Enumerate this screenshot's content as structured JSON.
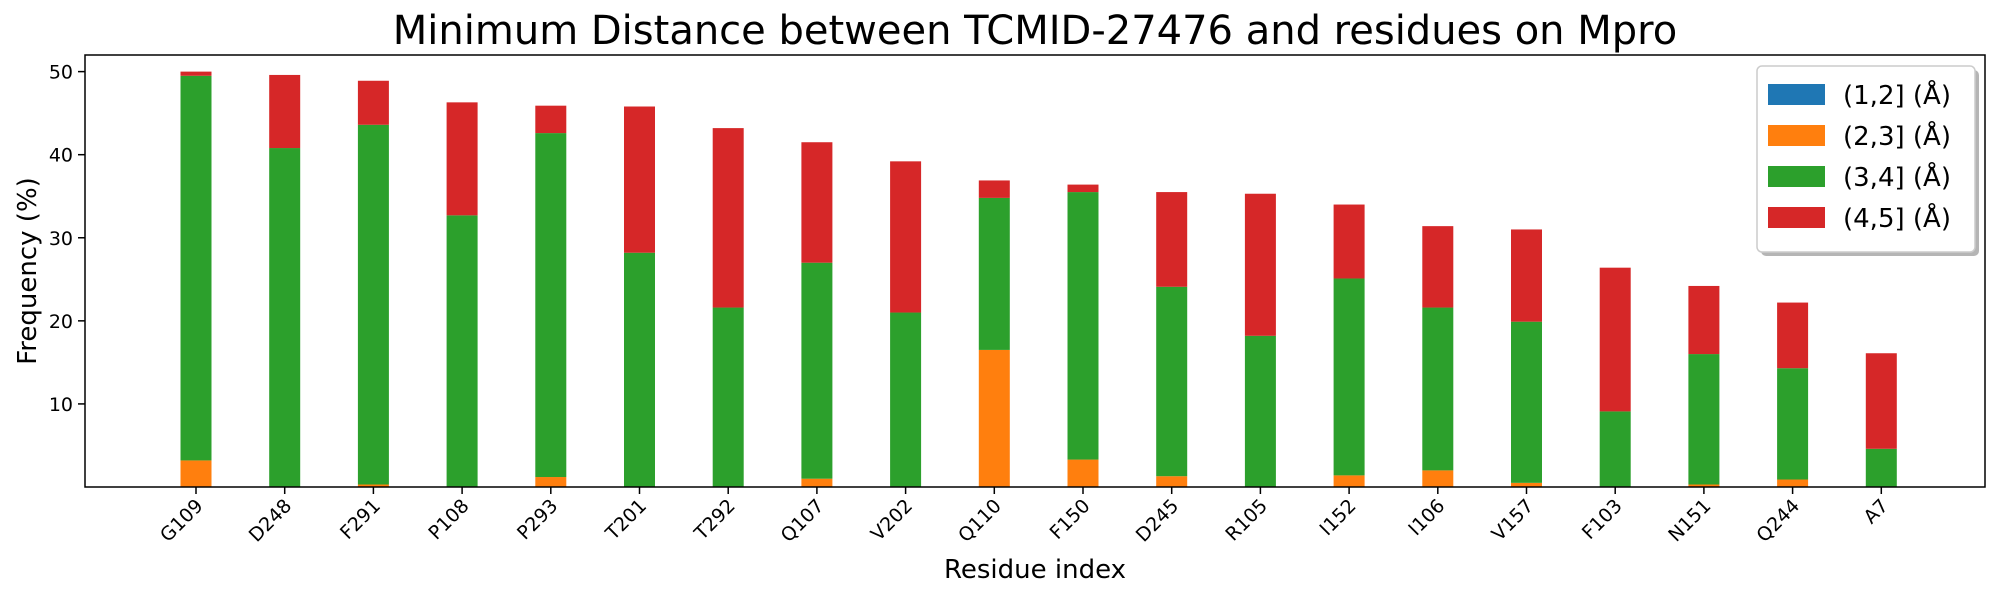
{
  "chart_data": {
    "type": "bar",
    "stacked": true,
    "title": "Minimum Distance between TCMID-27476 and residues on Mpro",
    "xlabel": "Residue index",
    "ylabel": "Frequency (%)",
    "ylim": [
      0,
      52
    ],
    "yticks": [
      10,
      20,
      30,
      40,
      50
    ],
    "xtick_rotation_deg": 45,
    "legend_position": "top-right",
    "grid": false,
    "categories": [
      "G109",
      "D248",
      "F291",
      "P108",
      "P293",
      "T201",
      "T292",
      "Q107",
      "V202",
      "Q110",
      "F150",
      "D245",
      "R105",
      "I152",
      "I106",
      "V157",
      "F103",
      "N151",
      "Q244",
      "A7"
    ],
    "series": [
      {
        "name": "(1,2] (Å)",
        "color": "#1f77b4",
        "values": [
          0,
          0,
          0,
          0,
          0,
          0,
          0,
          0,
          0,
          0,
          0,
          0,
          0,
          0,
          0,
          0,
          0,
          0,
          0,
          0
        ]
      },
      {
        "name": "(2,3] (Å)",
        "color": "#ff7f0e",
        "values": [
          3.2,
          0,
          0.3,
          0,
          1.2,
          0,
          0,
          1.0,
          0,
          16.5,
          3.3,
          1.3,
          0,
          1.4,
          2.0,
          0.5,
          0,
          0.3,
          0.9,
          0
        ]
      },
      {
        "name": "(3,4] (Å)",
        "color": "#2ca02c",
        "values": [
          46.3,
          40.8,
          43.3,
          32.7,
          41.4,
          28.2,
          21.6,
          26.0,
          21.0,
          18.3,
          32.2,
          22.8,
          18.2,
          23.7,
          19.6,
          19.4,
          9.1,
          15.7,
          13.4,
          4.6
        ]
      },
      {
        "name": "(4,5] (Å)",
        "color": "#d62728",
        "values": [
          0.5,
          8.8,
          5.3,
          13.6,
          3.3,
          17.6,
          21.6,
          14.5,
          18.2,
          2.1,
          0.9,
          11.4,
          17.1,
          8.9,
          9.8,
          11.1,
          17.3,
          8.2,
          7.9,
          11.5
        ]
      }
    ]
  }
}
